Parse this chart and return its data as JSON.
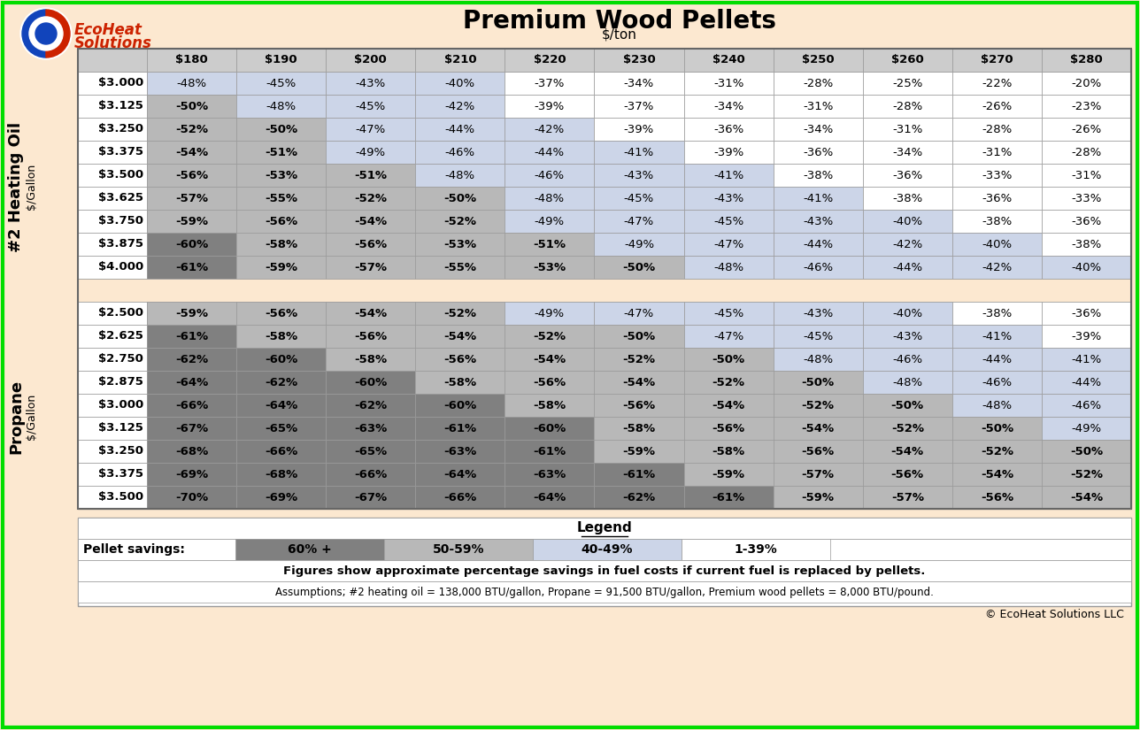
{
  "title": "Premium Wood Pellets",
  "subtitle": "$/ton",
  "bg_color": "#fce8d0",
  "border_color": "#00dd00",
  "pellet_cols": [
    "$180",
    "$190",
    "$200",
    "$210",
    "$220",
    "$230",
    "$240",
    "$250",
    "$260",
    "$270",
    "$280"
  ],
  "oil_rows": [
    "$3.000",
    "$3.125",
    "$3.250",
    "$3.375",
    "$3.500",
    "$3.625",
    "$3.750",
    "$3.875",
    "$4.000"
  ],
  "propane_rows": [
    "$2.500",
    "$2.625",
    "$2.750",
    "$2.875",
    "$3.000",
    "$3.125",
    "$3.250",
    "$3.375",
    "$3.500"
  ],
  "oil_data": [
    [
      -48,
      -45,
      -43,
      -40,
      -37,
      -34,
      -31,
      -28,
      -25,
      -22,
      -20
    ],
    [
      -50,
      -48,
      -45,
      -42,
      -39,
      -37,
      -34,
      -31,
      -28,
      -26,
      -23
    ],
    [
      -52,
      -50,
      -47,
      -44,
      -42,
      -39,
      -36,
      -34,
      -31,
      -28,
      -26
    ],
    [
      -54,
      -51,
      -49,
      -46,
      -44,
      -41,
      -39,
      -36,
      -34,
      -31,
      -28
    ],
    [
      -56,
      -53,
      -51,
      -48,
      -46,
      -43,
      -41,
      -38,
      -36,
      -33,
      -31
    ],
    [
      -57,
      -55,
      -52,
      -50,
      -48,
      -45,
      -43,
      -41,
      -38,
      -36,
      -33
    ],
    [
      -59,
      -56,
      -54,
      -52,
      -49,
      -47,
      -45,
      -43,
      -40,
      -38,
      -36
    ],
    [
      -60,
      -58,
      -56,
      -53,
      -51,
      -49,
      -47,
      -44,
      -42,
      -40,
      -38
    ],
    [
      -61,
      -59,
      -57,
      -55,
      -53,
      -50,
      -48,
      -46,
      -44,
      -42,
      -40
    ]
  ],
  "propane_data": [
    [
      -59,
      -56,
      -54,
      -52,
      -49,
      -47,
      -45,
      -43,
      -40,
      -38,
      -36
    ],
    [
      -61,
      -58,
      -56,
      -54,
      -52,
      -50,
      -47,
      -45,
      -43,
      -41,
      -39
    ],
    [
      -62,
      -60,
      -58,
      -56,
      -54,
      -52,
      -50,
      -48,
      -46,
      -44,
      -41
    ],
    [
      -64,
      -62,
      -60,
      -58,
      -56,
      -54,
      -52,
      -50,
      -48,
      -46,
      -44
    ],
    [
      -66,
      -64,
      -62,
      -60,
      -58,
      -56,
      -54,
      -52,
      -50,
      -48,
      -46
    ],
    [
      -67,
      -65,
      -63,
      -61,
      -60,
      -58,
      -56,
      -54,
      -52,
      -50,
      -49
    ],
    [
      -68,
      -66,
      -65,
      -63,
      -61,
      -59,
      -58,
      -56,
      -54,
      -52,
      -50
    ],
    [
      -69,
      -68,
      -66,
      -64,
      -63,
      -61,
      -59,
      -57,
      -56,
      -54,
      -52
    ],
    [
      -70,
      -69,
      -67,
      -66,
      -64,
      -62,
      -61,
      -59,
      -57,
      -56,
      -54
    ]
  ],
  "color_60plus": "#808080",
  "color_50_59": "#b8b8b8",
  "color_40_49": "#ccd5e8",
  "color_1_39": "#ffffff",
  "header_bg": "#cccccc",
  "separator_bg": "#fce8d0",
  "legend_60plus": "60% +",
  "legend_50_59": "50-59%",
  "legend_40_49": "40-49%",
  "legend_1_39": "1-39%",
  "figures_text": "Figures show approximate percentage savings in fuel costs if current fuel is replaced by pellets.",
  "assumptions_text": "Assumptions; #2 heating oil = 138,000 BTU/gallon, Propane = 91,500 BTU/gallon, Premium wood pellets = 8,000 BTU/pound.",
  "copyright_text": "© EcoHeat Solutions LLC"
}
